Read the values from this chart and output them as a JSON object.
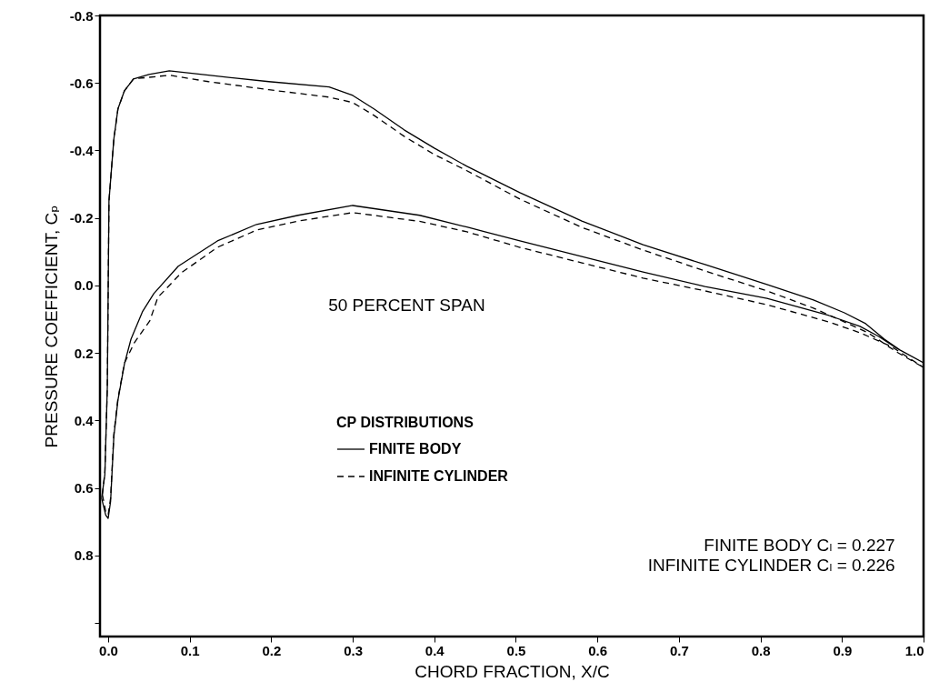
{
  "chart_data": {
    "type": "line",
    "xlabel": "CHORD FRACTION, X/C",
    "ylabel": "PRESSURE COEFFICIENT, Cₚ",
    "legend_title": "CP DISTRIBUTIONS",
    "legend": "center",
    "grid": false,
    "marker": "none",
    "xlim": [
      -0.01,
      1.0
    ],
    "xticks": [
      {
        "value": 0,
        "label": "0.0"
      },
      0.1,
      0.2,
      0.3,
      0.4,
      0.5,
      0.6,
      0.7,
      0.8,
      0.9,
      {
        "value": 1,
        "label": "1.0"
      }
    ],
    "ylim": [
      1.04,
      -0.8
    ],
    "yticks": [
      {
        "value": -0.8,
        "label": "-0.8"
      },
      {
        "value": -0.6,
        "label": "-0.6"
      },
      {
        "value": -0.4,
        "label": "-0.4"
      },
      {
        "value": -0.2,
        "label": "-0.2"
      },
      {
        "value": 0.0,
        "label": "0.0"
      },
      {
        "value": 0.2,
        "label": "0.2"
      },
      {
        "value": 0.4,
        "label": "0.4"
      },
      {
        "value": 0.6,
        "label": "0.6"
      },
      {
        "value": 0.8,
        "label": "0.8"
      },
      {
        "value": 1.0,
        "label": null
      }
    ],
    "annotations": [
      "50 PERCENT SPAN",
      "FINITE BODY Cₗ = 0.227",
      "INFINITE CYLINDER Cₗ = 0.226"
    ],
    "series": [
      {
        "name": "FINITE BODY",
        "color": "#000000",
        "line_style": "solid",
        "x": [
          -0.008,
          -0.004,
          -0.001,
          0.001,
          0.007,
          0.012,
          0.02,
          0.031,
          0.05,
          0.075,
          0.123,
          0.197,
          0.271,
          0.3,
          0.326,
          0.363,
          0.4,
          0.44,
          0.505,
          0.581,
          0.656,
          0.732,
          0.808,
          0.865,
          0.903,
          0.929,
          0.952,
          0.971,
          1.0,
          null,
          -0.008,
          -0.003,
          0.0,
          0.003,
          0.007,
          0.012,
          0.02,
          0.028,
          0.042,
          0.056,
          0.086,
          0.134,
          0.182,
          0.233,
          0.3,
          0.382,
          0.44,
          0.505,
          0.581,
          0.656,
          0.732,
          0.808,
          0.884,
          0.922,
          0.945,
          0.967,
          1.0
        ],
        "values": [
          0.63,
          0.56,
          0.3,
          -0.25,
          -0.434,
          -0.523,
          -0.577,
          -0.612,
          -0.625,
          -0.636,
          -0.623,
          -0.604,
          -0.588,
          -0.563,
          -0.523,
          -0.461,
          -0.407,
          -0.353,
          -0.275,
          -0.191,
          -0.121,
          -0.062,
          -0.003,
          0.043,
          0.081,
          0.113,
          0.159,
          0.191,
          0.229,
          null,
          0.63,
          0.68,
          0.69,
          0.64,
          0.447,
          0.34,
          0.232,
          0.159,
          0.078,
          0.024,
          -0.057,
          -0.132,
          -0.181,
          -0.208,
          -0.237,
          -0.208,
          -0.173,
          -0.132,
          -0.086,
          -0.04,
          0.003,
          0.038,
          0.089,
          0.121,
          0.151,
          0.186,
          0.229
        ]
      },
      {
        "name": "INFINITE CYLINDER",
        "color": "#000000",
        "line_style": "dashed",
        "x": [
          -0.007,
          -0.004,
          -0.001,
          0.001,
          0.007,
          0.012,
          0.02,
          0.031,
          0.075,
          0.123,
          0.197,
          0.271,
          0.3,
          0.326,
          0.363,
          0.4,
          0.44,
          0.505,
          0.581,
          0.656,
          0.732,
          0.808,
          0.865,
          0.903,
          0.932,
          0.967,
          1.0,
          null,
          -0.007,
          -0.003,
          0.0,
          0.003,
          0.007,
          0.012,
          0.02,
          0.032,
          0.051,
          0.061,
          0.09,
          0.134,
          0.182,
          0.233,
          0.3,
          0.382,
          0.44,
          0.505,
          0.581,
          0.656,
          0.732,
          0.808,
          0.884,
          0.922,
          0.96,
          1.0
        ],
        "values": [
          0.62,
          0.55,
          0.3,
          -0.25,
          -0.434,
          -0.523,
          -0.577,
          -0.612,
          -0.623,
          -0.604,
          -0.58,
          -0.558,
          -0.542,
          -0.504,
          -0.442,
          -0.388,
          -0.34,
          -0.256,
          -0.172,
          -0.105,
          -0.043,
          0.016,
          0.067,
          0.108,
          0.14,
          0.197,
          0.243,
          null,
          0.62,
          0.67,
          0.68,
          0.63,
          0.44,
          0.335,
          0.23,
          0.17,
          0.105,
          0.035,
          -0.038,
          -0.113,
          -0.164,
          -0.191,
          -0.216,
          -0.19,
          -0.159,
          -0.113,
          -0.067,
          -0.022,
          0.016,
          0.057,
          0.108,
          0.14,
          0.18,
          0.243
        ]
      }
    ]
  }
}
